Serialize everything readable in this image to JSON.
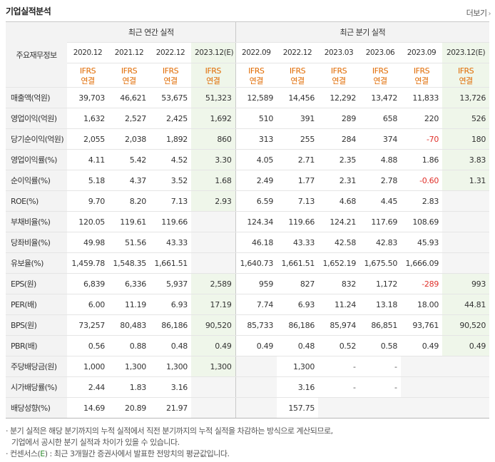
{
  "header": {
    "title": "기업실적분석",
    "more_label": "더보기",
    "more_icon": "chevron-right"
  },
  "table": {
    "label_header": "주요재무정보",
    "groups": {
      "annual": "최근 연간 실적",
      "quarterly": "최근 분기 실적"
    },
    "periods": [
      "2020.12",
      "2021.12",
      "2022.12",
      "2023.12(E)",
      "2022.09",
      "2022.12",
      "2023.03",
      "2023.06",
      "2023.09",
      "2023.12(E)"
    ],
    "ifrs": [
      "IFRS",
      "IFRS",
      "IFRS",
      "IFRS",
      "IFRS",
      "IFRS",
      "IFRS",
      "IFRS",
      "IFRS",
      "IFRS"
    ],
    "basis": [
      "연결",
      "연결",
      "연결",
      "연결",
      "연결",
      "연결",
      "연결",
      "연결",
      "연결",
      "연결"
    ],
    "rows": [
      {
        "label": "매출액(억원)",
        "cells": [
          "39,703",
          "46,621",
          "53,675",
          "51,323",
          "12,589",
          "14,456",
          "12,292",
          "13,472",
          "11,833",
          "13,726"
        ]
      },
      {
        "label": "영업이익(억원)",
        "cells": [
          "1,632",
          "2,527",
          "2,425",
          "1,692",
          "510",
          "391",
          "289",
          "658",
          "220",
          "526"
        ]
      },
      {
        "label": "당기순이익(억원)",
        "cells": [
          "2,055",
          "2,038",
          "1,892",
          "860",
          "313",
          "255",
          "284",
          "374",
          "-70",
          "180"
        ]
      },
      {
        "label": "영업이익률(%)",
        "cells": [
          "4.11",
          "5.42",
          "4.52",
          "3.30",
          "4.05",
          "2.71",
          "2.35",
          "4.88",
          "1.86",
          "3.83"
        ]
      },
      {
        "label": "순이익률(%)",
        "cells": [
          "5.18",
          "4.37",
          "3.52",
          "1.68",
          "2.49",
          "1.77",
          "2.31",
          "2.78",
          "-0.60",
          "1.31"
        ]
      },
      {
        "label": "ROE(%)",
        "cells": [
          "9.70",
          "8.20",
          "7.13",
          "2.93",
          "6.59",
          "7.13",
          "4.68",
          "4.45",
          "2.83",
          ""
        ]
      },
      {
        "label": "부채비율(%)",
        "cells": [
          "120.05",
          "119.61",
          "119.66",
          "",
          "124.34",
          "119.66",
          "124.21",
          "117.69",
          "108.69",
          ""
        ]
      },
      {
        "label": "당좌비율(%)",
        "cells": [
          "49.98",
          "51.56",
          "43.33",
          "",
          "46.18",
          "43.33",
          "42.58",
          "42.83",
          "45.93",
          ""
        ]
      },
      {
        "label": "유보율(%)",
        "cells": [
          "1,459.78",
          "1,548.35",
          "1,661.51",
          "",
          "1,640.73",
          "1,661.51",
          "1,652.19",
          "1,675.50",
          "1,666.09",
          ""
        ]
      },
      {
        "label": "EPS(원)",
        "cells": [
          "6,839",
          "6,336",
          "5,937",
          "2,589",
          "959",
          "827",
          "832",
          "1,172",
          "-289",
          "993"
        ]
      },
      {
        "label": "PER(배)",
        "cells": [
          "6.00",
          "11.19",
          "6.93",
          "17.19",
          "7.74",
          "6.93",
          "11.24",
          "13.18",
          "18.00",
          "44.81"
        ]
      },
      {
        "label": "BPS(원)",
        "cells": [
          "73,257",
          "80,483",
          "86,186",
          "90,520",
          "85,733",
          "86,186",
          "85,974",
          "86,851",
          "93,761",
          "90,520"
        ]
      },
      {
        "label": "PBR(배)",
        "cells": [
          "0.56",
          "0.88",
          "0.48",
          "0.49",
          "0.49",
          "0.48",
          "0.52",
          "0.58",
          "0.49",
          "0.49"
        ]
      },
      {
        "label": "주당배당금(원)",
        "cells": [
          "1,000",
          "1,300",
          "1,300",
          "1,300",
          "",
          "1,300",
          "-",
          "-",
          "",
          ""
        ]
      },
      {
        "label": "시가배당률(%)",
        "cells": [
          "2.44",
          "1.83",
          "3.16",
          "",
          "",
          "3.16",
          "-",
          "-",
          "",
          ""
        ]
      },
      {
        "label": "배당성향(%)",
        "cells": [
          "14.69",
          "20.89",
          "21.97",
          "",
          "",
          "157.75",
          "",
          "",
          "",
          ""
        ]
      }
    ]
  },
  "notes": {
    "line1": "· 분기 실적은 해당 분기까지의 누적 실적에서 직전 분기까지의 누적 실적을 차감하는 방식으로 계산되므로,",
    "line2": "기업에서 공시한 분기 실적과 차이가 있을 수 있습니다.",
    "line3_prefix": "· 컨센서스(",
    "line3_mark": "E",
    "line3_suffix": ") : 최근 3개월간 증권사에서 발표한 전망치의 평균값입니다."
  },
  "colors": {
    "ifrs_orange": "#e06a00",
    "negative_red": "#e0302a",
    "estimate_bg": "#eff6ea",
    "label_bg": "#f3f3f3",
    "consensus_green": "#2d8a2d"
  }
}
